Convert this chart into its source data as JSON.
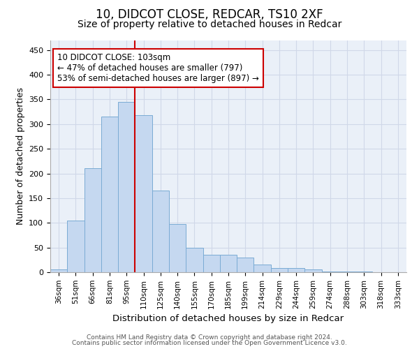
{
  "title1": "10, DIDCOT CLOSE, REDCAR, TS10 2XF",
  "title2": "Size of property relative to detached houses in Redcar",
  "xlabel": "Distribution of detached houses by size in Redcar",
  "ylabel": "Number of detached properties",
  "categories": [
    "36sqm",
    "51sqm",
    "66sqm",
    "81sqm",
    "95sqm",
    "110sqm",
    "125sqm",
    "140sqm",
    "155sqm",
    "170sqm",
    "185sqm",
    "199sqm",
    "214sqm",
    "229sqm",
    "244sqm",
    "259sqm",
    "274sqm",
    "288sqm",
    "303sqm",
    "318sqm",
    "333sqm"
  ],
  "values": [
    6,
    105,
    210,
    315,
    345,
    318,
    165,
    97,
    50,
    35,
    35,
    29,
    16,
    8,
    8,
    5,
    2,
    1,
    1,
    0,
    0
  ],
  "bar_color": "#c5d8f0",
  "bar_edge_color": "#7aabd4",
  "vline_color": "#cc0000",
  "annotation_text": "10 DIDCOT CLOSE: 103sqm\n← 47% of detached houses are smaller (797)\n53% of semi-detached houses are larger (897) →",
  "annotation_box_color": "#ffffff",
  "annotation_box_edge": "#cc0000",
  "ylim": [
    0,
    470
  ],
  "yticks": [
    0,
    50,
    100,
    150,
    200,
    250,
    300,
    350,
    400,
    450
  ],
  "grid_color": "#d0d8e8",
  "bg_color": "#eaf0f8",
  "footer1": "Contains HM Land Registry data © Crown copyright and database right 2024.",
  "footer2": "Contains public sector information licensed under the Open Government Licence v3.0.",
  "title_fontsize": 12,
  "subtitle_fontsize": 10,
  "bar_width": 1.0
}
